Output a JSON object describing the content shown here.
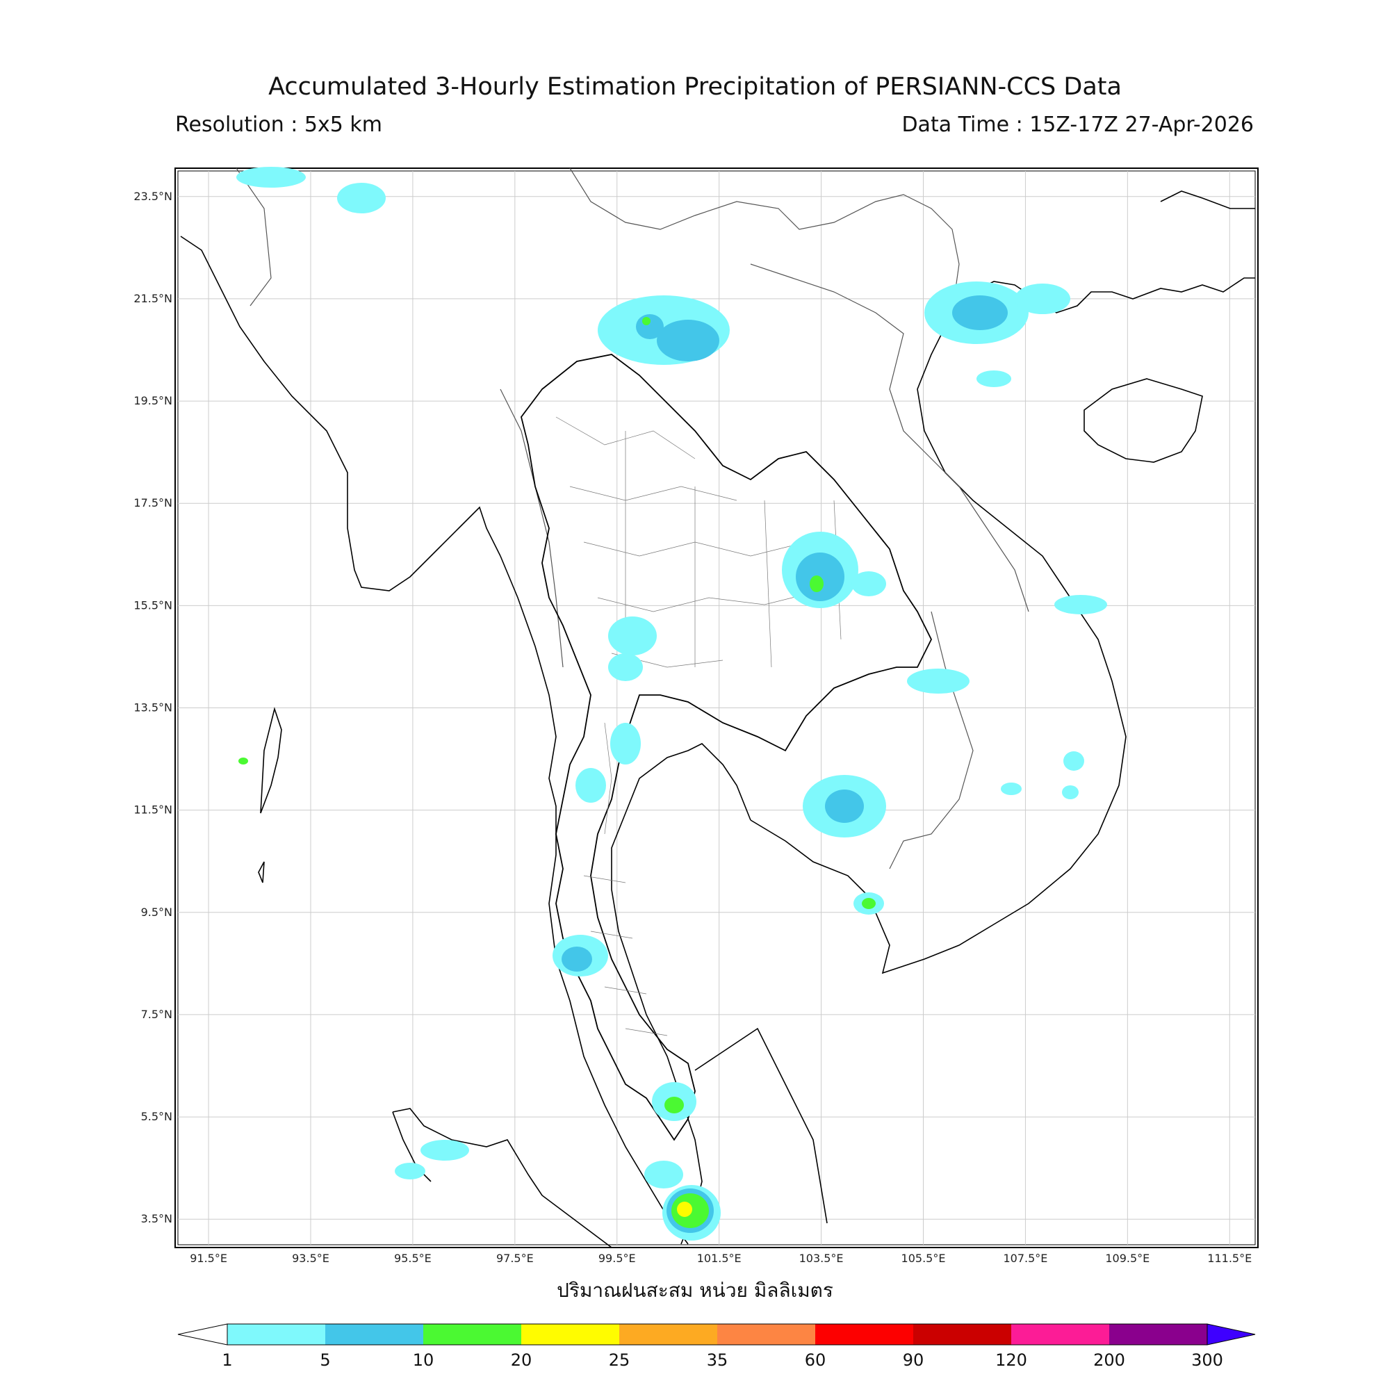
{
  "title": "Accumulated 3-Hourly Estimation Precipitation of PERSIANN-CCS Data",
  "resolution": "Resolution : 5x5 km",
  "data_time": "Data Time : 15Z-17Z 27-Apr-2026",
  "xlabel": "ปริมาณฝนสะสม หน่วย มิลลิเมตร",
  "map": {
    "lon_range": [
      90.9,
      112.0
    ],
    "lat_range": [
      3.0,
      24.0
    ],
    "x_ticks": [
      "91.5°E",
      "93.5°E",
      "95.5°E",
      "97.5°E",
      "99.5°E",
      "101.5°E",
      "103.5°E",
      "105.5°E",
      "107.5°E",
      "109.5°E",
      "111.5°E"
    ],
    "y_ticks": [
      "23.5°N",
      "21.5°N",
      "19.5°N",
      "17.5°N",
      "15.5°N",
      "13.5°N",
      "11.5°N",
      "9.5°N",
      "7.5°N",
      "5.5°N",
      "3.5°N"
    ],
    "grid": true
  },
  "colorbar": {
    "labels": [
      "1",
      "5",
      "10",
      "20",
      "25",
      "35",
      "60",
      "90",
      "120",
      "200",
      "300"
    ],
    "colors": [
      "#7ff9fc",
      "#43c6e9",
      "#4bf932",
      "#fffc00",
      "#fdaa22",
      "#fd8543",
      "#fd0000",
      "#cb0000",
      "#fc1c96",
      "#8a008d"
    ],
    "extend_min_color": "#ffffff",
    "extend_max_color": "#3e00ff"
  }
}
